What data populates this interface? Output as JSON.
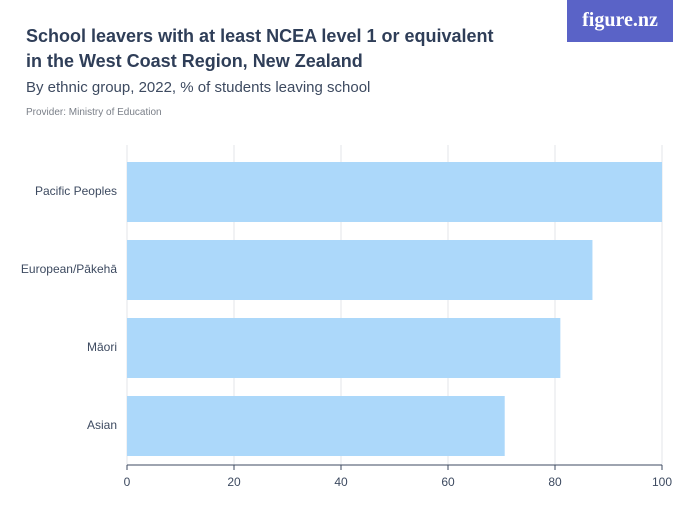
{
  "logo": "figure.nz",
  "chart_data": {
    "type": "barh",
    "title": "School leavers with at least NCEA level 1 or equivalent in the West Coast Region, New Zealand",
    "subtitle": "By ethnic group, 2022, % of students leaving school",
    "provider": "Provider: Ministry of Education",
    "categories": [
      "Pacific Peoples",
      "European/Pākehā",
      "Māori",
      "Asian"
    ],
    "values": [
      100,
      87,
      81,
      70.6
    ],
    "color": "#acd8fa",
    "xlim": [
      0,
      100
    ],
    "xticks": [
      0,
      20,
      40,
      60,
      80,
      100
    ],
    "grid": true
  }
}
